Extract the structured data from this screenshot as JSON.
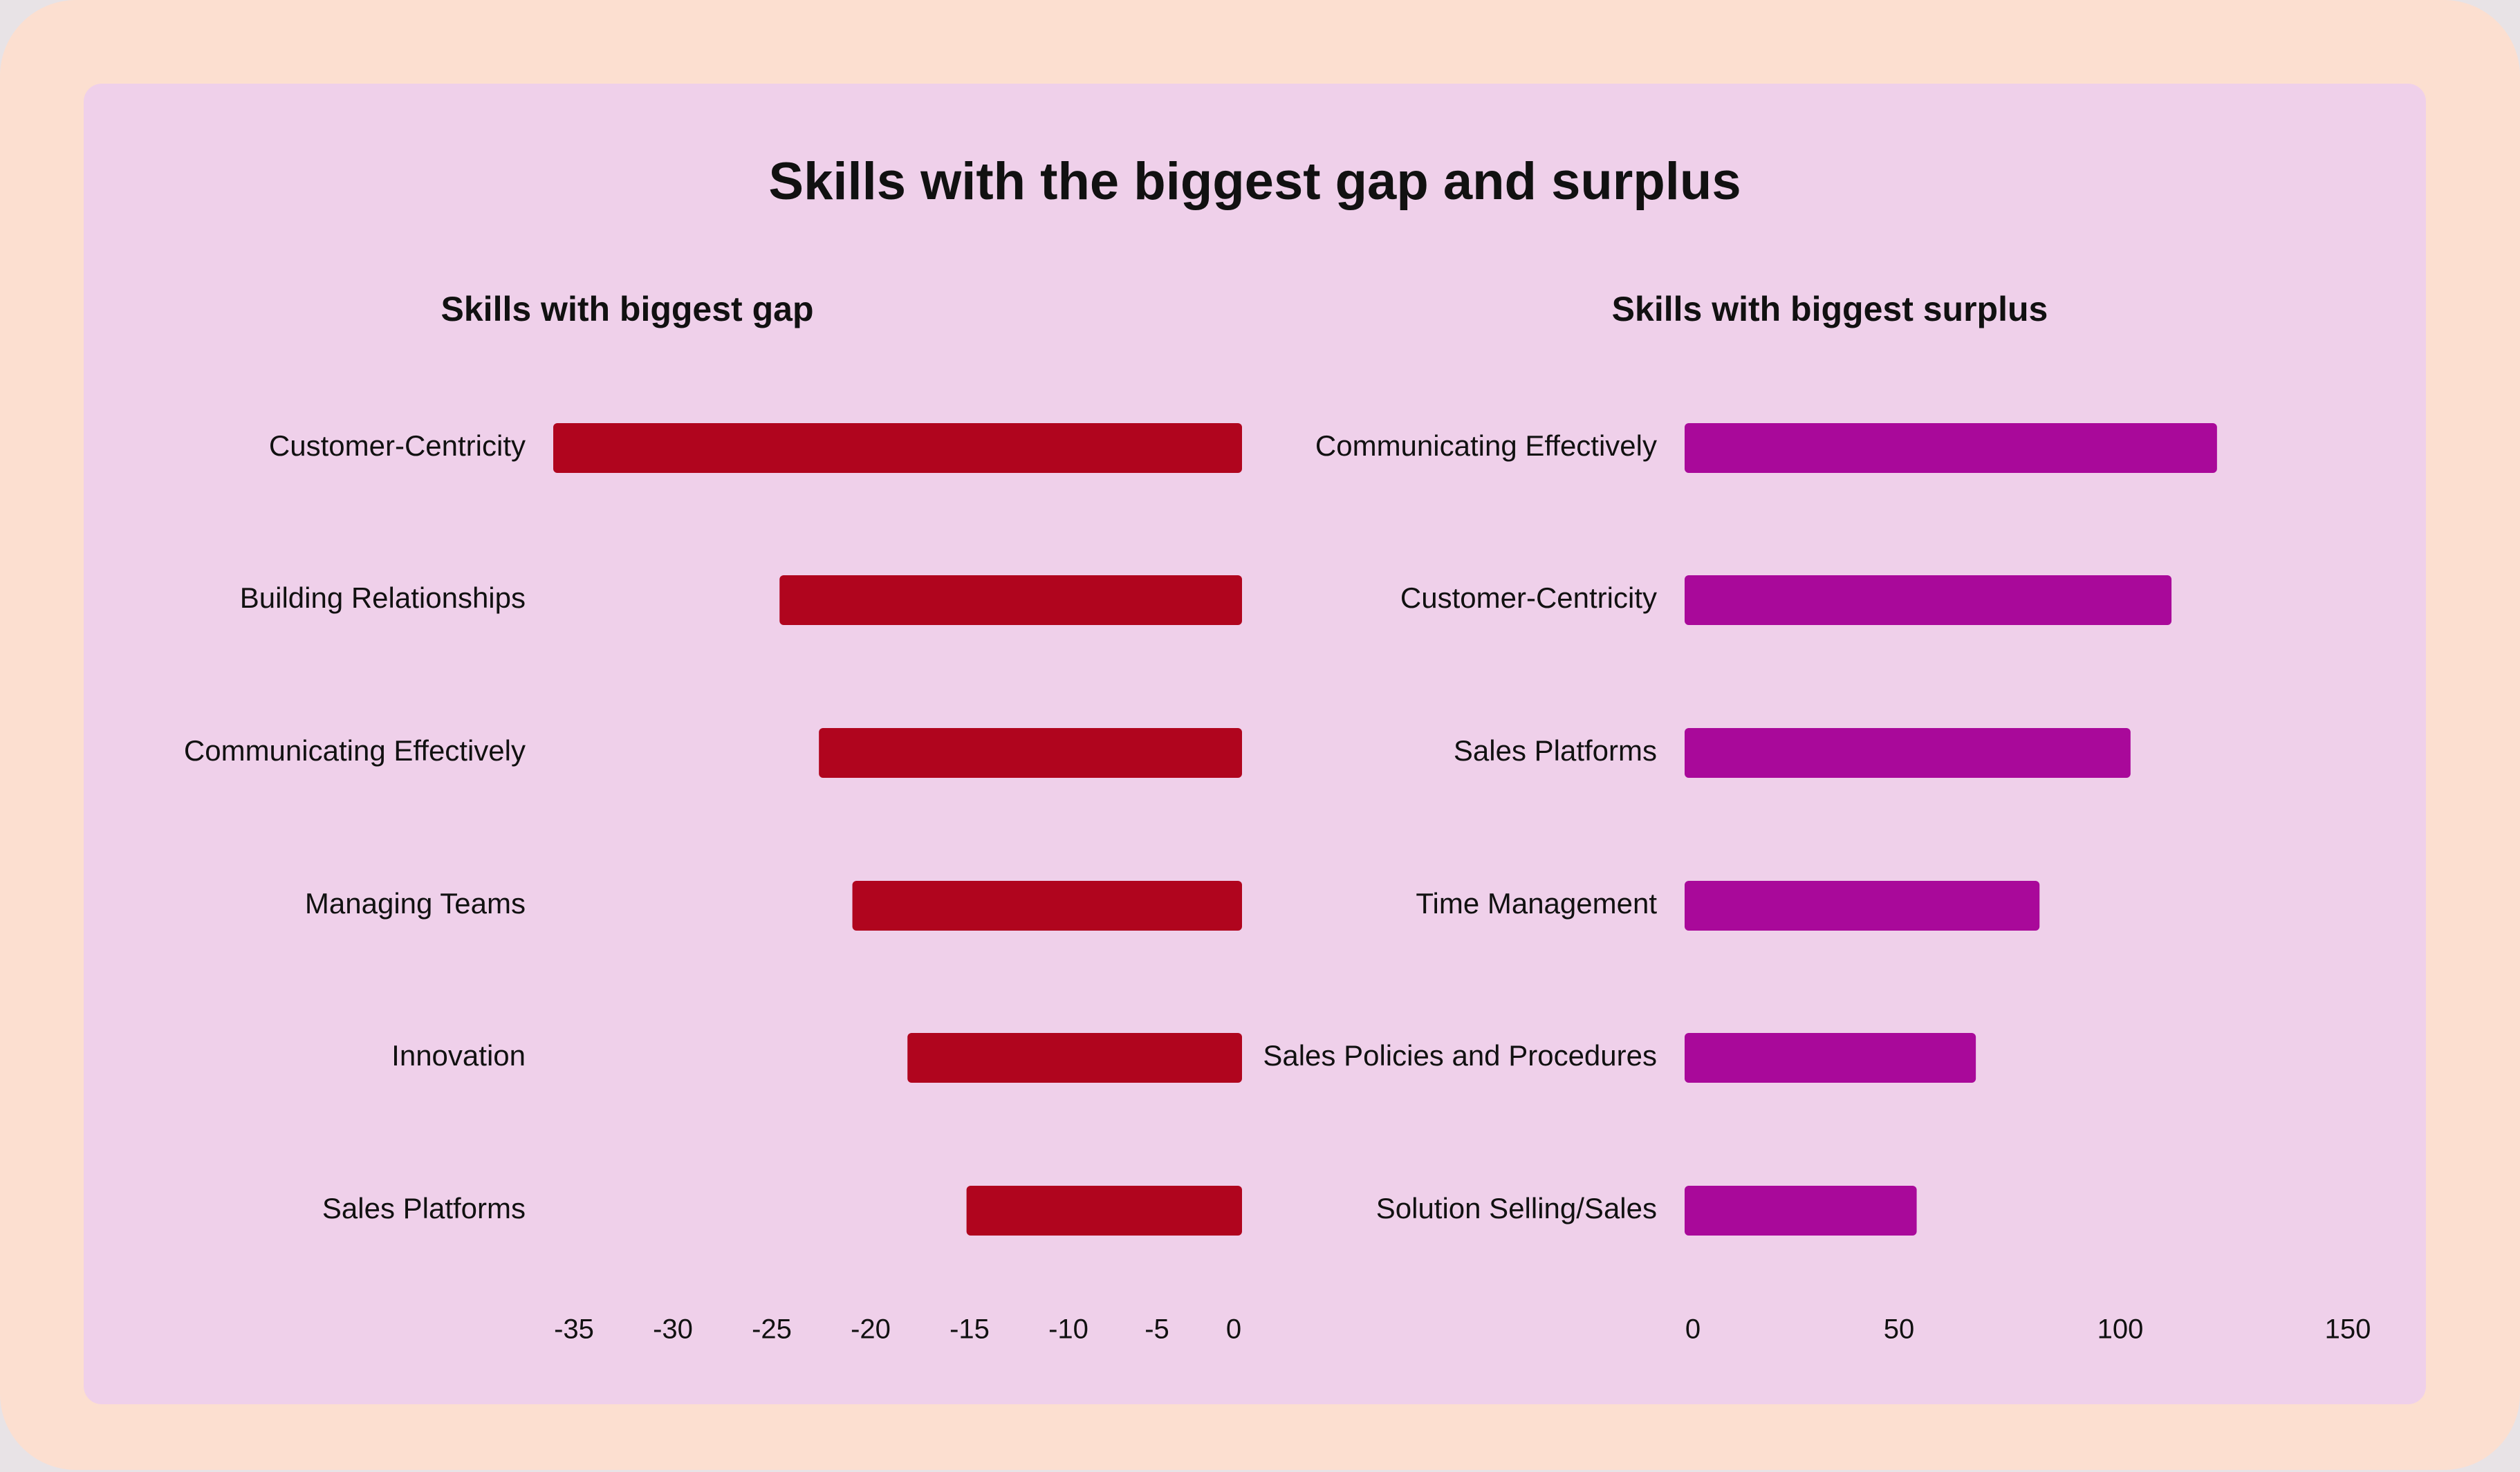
{
  "title": "Skills with the biggest gap and surplus",
  "colors": {
    "outer_background": "#fcdfd0",
    "panel_background": "#efd0ea",
    "gap_bar": "#b0051e",
    "surplus_bar": "#a9099a"
  },
  "chart_data": [
    {
      "type": "bar",
      "orientation": "horizontal",
      "title": "Skills with biggest gap",
      "categories": [
        "Customer-Centricity",
        "Building Relationships",
        "Communicating Effectively",
        "Managing Teams",
        "Innovation",
        "Sales Platforms"
      ],
      "values": [
        -35,
        -23.5,
        -21.5,
        -19.8,
        -17,
        -14
      ],
      "xlim": [
        -35,
        0
      ],
      "xticks": [
        "-35",
        "-30",
        "-25",
        "-20",
        "-15",
        "-10",
        "-5",
        "0"
      ],
      "xtick_values": [
        -35,
        -30,
        -25,
        -20,
        -15,
        -10,
        -5,
        0
      ],
      "grid": false,
      "color": "#b0051e"
    },
    {
      "type": "bar",
      "orientation": "horizontal",
      "title": "Skills with biggest surplus",
      "categories": [
        "Communicating Effectively",
        "Customer-Centricity",
        "Sales Platforms",
        "Time Management",
        "Sales Policies and Procedures",
        "Solution Selling/Sales"
      ],
      "values": [
        117,
        107,
        98,
        78,
        64,
        51
      ],
      "xlim": [
        0,
        150
      ],
      "xticks": [
        "0",
        "50",
        "100",
        "150"
      ],
      "xtick_values": [
        0,
        50,
        100,
        150
      ],
      "grid": false,
      "color": "#a9099a"
    }
  ]
}
